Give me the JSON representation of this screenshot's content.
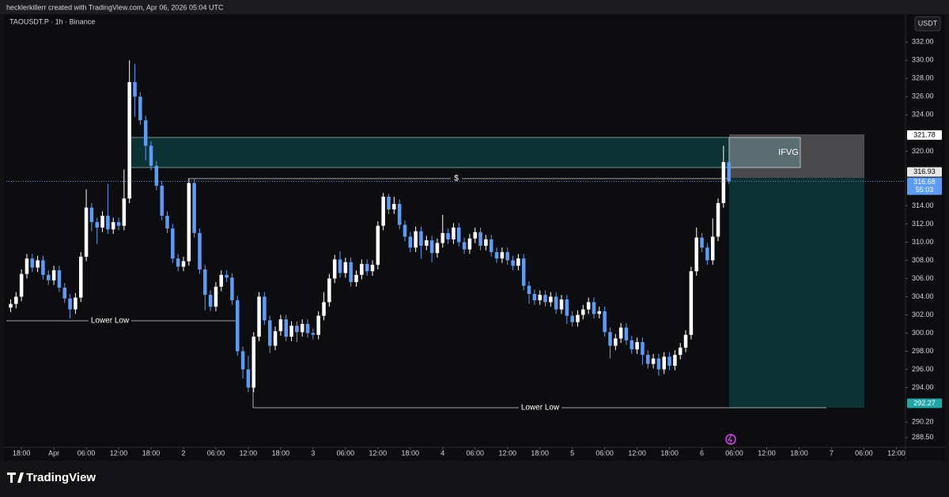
{
  "chart_data": {
    "type": "candlestick",
    "caption": "hecklerkillerr created with TradingView.com, Apr 06, 2026 05:04 UTC",
    "title": "TAOUSDT.P · 1h · Binance",
    "currency": "USDT",
    "brand": "TradingView",
    "annotations": [
      "IFVG",
      "$",
      "Lower Low",
      "Lower Low"
    ],
    "countdown": "55:03",
    "price_labels": [
      321.78,
      316.93,
      316.68,
      292.27
    ],
    "up_color": "#ffffff",
    "down_color": "#5b9cf6",
    "grid": false,
    "xlim": [
      -0.8,
      165.7
    ],
    "ylim": [
      287.44,
      335.07
    ],
    "xticks": [
      {
        "value": 2,
        "label": "18:00"
      },
      {
        "value": 8,
        "label": "Apr"
      },
      {
        "value": 14,
        "label": "06:00"
      },
      {
        "value": 20,
        "label": "12:00"
      },
      {
        "value": 26,
        "label": "18:00"
      },
      {
        "value": 32,
        "label": "2"
      },
      {
        "value": 38,
        "label": "06:00"
      },
      {
        "value": 44,
        "label": "12:00"
      },
      {
        "value": 50,
        "label": "18:00"
      },
      {
        "value": 56,
        "label": "3"
      },
      {
        "value": 62,
        "label": "06:00"
      },
      {
        "value": 68,
        "label": "12:00"
      },
      {
        "value": 74,
        "label": "18:00"
      },
      {
        "value": 80,
        "label": "4"
      },
      {
        "value": 86,
        "label": "06:00"
      },
      {
        "value": 92,
        "label": "12:00"
      },
      {
        "value": 98,
        "label": "18:00"
      },
      {
        "value": 104,
        "label": "5"
      },
      {
        "value": 110,
        "label": "06:00"
      },
      {
        "value": 116,
        "label": "12:00"
      },
      {
        "value": 122,
        "label": "18:00"
      },
      {
        "value": 128,
        "label": "6"
      },
      {
        "value": 134,
        "label": "06:00"
      },
      {
        "value": 140,
        "label": "12:00"
      },
      {
        "value": 146,
        "label": "18:00"
      },
      {
        "value": 152,
        "label": "7"
      },
      {
        "value": 158,
        "label": "06:00"
      },
      {
        "value": 164,
        "label": "12:00"
      }
    ],
    "yticks": [
      {
        "value": 332,
        "label": "332.00"
      },
      {
        "value": 330,
        "label": "330.00"
      },
      {
        "value": 328,
        "label": "328.00"
      },
      {
        "value": 326,
        "label": "326.00"
      },
      {
        "value": 324,
        "label": "324.00"
      },
      {
        "value": 320,
        "label": "320.00"
      },
      {
        "value": 314,
        "label": "314.00"
      },
      {
        "value": 312,
        "label": "312.00"
      },
      {
        "value": 310,
        "label": "310.00"
      },
      {
        "value": 308,
        "label": "308.00"
      },
      {
        "value": 306,
        "label": "306.00"
      },
      {
        "value": 304,
        "label": "304.00"
      },
      {
        "value": 302,
        "label": "302.00"
      },
      {
        "value": 300,
        "label": "300.00"
      },
      {
        "value": 298,
        "label": "298.00"
      },
      {
        "value": 296,
        "label": "296.00"
      },
      {
        "value": 294,
        "label": "294.00"
      },
      {
        "value": 290.2,
        "label": "290.20"
      },
      {
        "value": 288.5,
        "label": "288.50"
      }
    ],
    "open": [
      302.8,
      303.2,
      304.0,
      306.5,
      308.2,
      307.2,
      308.0,
      306.4,
      305.8,
      306.9,
      305.0,
      303.8,
      302.6,
      303.9,
      308.4,
      313.8,
      312.2,
      311.6,
      312.9,
      311.4,
      312.2,
      311.8,
      314.8,
      327.6,
      326.0,
      323.4,
      320.6,
      318.4,
      316.2,
      312.9,
      311.5,
      308.2,
      307.3,
      307.9,
      316.5,
      311.0,
      307.0,
      304.2,
      302.9,
      305.1,
      306.4,
      306.1,
      303.6,
      298.0,
      296.0,
      294.0,
      299.6,
      304.0,
      301.4,
      298.6,
      300.2,
      301.5,
      299.6,
      300.8,
      300.1,
      301.0,
      300.0,
      299.8,
      301.9,
      303.4,
      306.0,
      308.1,
      306.6,
      307.8,
      305.6,
      306.4,
      307.6,
      306.8,
      307.5,
      311.8,
      315.0,
      313.6,
      314.2,
      311.9,
      310.6,
      309.4,
      311.2,
      309.6,
      310.2,
      308.8,
      309.9,
      311.0,
      310.3,
      311.6,
      310.0,
      309.2,
      310.4,
      311.1,
      309.6,
      310.3,
      308.9,
      308.2,
      308.9,
      308.0,
      307.4,
      308.2,
      305.2,
      304.3,
      303.6,
      304.2,
      303.4,
      304.0,
      302.6,
      303.7,
      301.9,
      301.2,
      302.0,
      302.6,
      303.4,
      302.1,
      302.4,
      300.1,
      298.6,
      299.4,
      300.6,
      299.2,
      298.2,
      299.0,
      297.6,
      296.6,
      297.2,
      296.0,
      297.4,
      296.4,
      297.6,
      298.4,
      299.8,
      306.8,
      310.5,
      309.4,
      308.0,
      310.6,
      314.3,
      318.8
    ],
    "high": [
      303.7,
      304.5,
      307.0,
      308.7,
      308.7,
      308.5,
      308.5,
      306.9,
      307.4,
      307.4,
      305.5,
      304.3,
      304.4,
      308.9,
      315.8,
      314.3,
      312.7,
      313.4,
      316.4,
      312.7,
      312.7,
      318.0,
      330.0,
      329.6,
      326.5,
      323.9,
      321.1,
      318.9,
      316.7,
      313.4,
      312.0,
      308.7,
      308.4,
      317.0,
      317.0,
      311.5,
      307.5,
      304.7,
      305.6,
      306.9,
      306.9,
      306.6,
      304.1,
      298.5,
      297.5,
      300.1,
      304.5,
      304.5,
      301.9,
      300.7,
      302.0,
      302.0,
      301.3,
      301.3,
      301.5,
      301.5,
      300.5,
      302.4,
      304.5,
      306.5,
      308.6,
      309.0,
      308.3,
      308.3,
      306.9,
      308.1,
      308.1,
      308.0,
      312.3,
      315.4,
      315.3,
      315.0,
      314.7,
      312.4,
      311.1,
      311.7,
      311.7,
      310.7,
      310.7,
      310.4,
      313.0,
      311.5,
      312.1,
      312.1,
      310.5,
      310.9,
      311.6,
      311.6,
      310.8,
      310.8,
      309.4,
      309.4,
      309.4,
      308.5,
      308.7,
      308.7,
      305.7,
      304.8,
      304.7,
      304.7,
      304.5,
      304.5,
      304.2,
      304.2,
      302.4,
      302.5,
      303.1,
      303.9,
      303.9,
      302.9,
      302.9,
      300.6,
      299.9,
      301.1,
      301.1,
      299.7,
      299.5,
      299.5,
      298.1,
      297.7,
      297.7,
      297.9,
      297.9,
      298.1,
      298.9,
      300.3,
      307.3,
      311.6,
      311.0,
      309.9,
      312.6,
      314.8,
      320.6,
      319.2
    ],
    "low": [
      302.3,
      302.7,
      303.5,
      306.0,
      306.7,
      306.7,
      305.9,
      305.3,
      305.3,
      304.5,
      303.3,
      301.6,
      302.1,
      303.4,
      307.9,
      311.2,
      309.8,
      311.1,
      310.9,
      310.9,
      311.3,
      311.3,
      314.3,
      323.8,
      322.9,
      319.0,
      317.9,
      315.7,
      312.4,
      311.0,
      307.7,
      306.8,
      306.8,
      307.4,
      310.5,
      306.5,
      302.5,
      302.4,
      302.4,
      304.6,
      305.6,
      303.1,
      297.5,
      295.0,
      293.5,
      293.5,
      299.1,
      300.9,
      297.8,
      298.1,
      299.7,
      299.1,
      299.1,
      299.0,
      299.6,
      299.5,
      299.3,
      299.3,
      301.4,
      302.9,
      305.5,
      306.1,
      306.1,
      305.1,
      305.1,
      305.9,
      306.3,
      306.3,
      307.0,
      311.3,
      313.1,
      313.1,
      311.4,
      310.1,
      308.9,
      308.9,
      308.2,
      309.1,
      307.8,
      308.3,
      309.4,
      309.8,
      309.8,
      309.5,
      308.7,
      308.7,
      309.9,
      309.1,
      309.1,
      308.4,
      307.7,
      307.7,
      307.5,
      306.9,
      306.9,
      304.7,
      303.2,
      303.1,
      303.1,
      302.9,
      302.9,
      302.1,
      302.1,
      301.0,
      300.7,
      300.7,
      301.5,
      302.1,
      301.6,
      301.6,
      299.6,
      297.2,
      298.1,
      298.9,
      298.7,
      297.7,
      297.7,
      296.5,
      296.1,
      296.1,
      295.3,
      295.5,
      295.9,
      295.9,
      297.1,
      297.9,
      299.3,
      306.3,
      308.9,
      307.5,
      307.5,
      310.1,
      313.8,
      316.4
    ],
    "close": [
      303.2,
      304.0,
      306.5,
      308.2,
      307.2,
      308.0,
      306.4,
      305.8,
      306.9,
      305.0,
      303.8,
      302.6,
      303.9,
      308.4,
      313.8,
      312.2,
      311.6,
      312.9,
      311.4,
      312.2,
      311.8,
      314.8,
      327.6,
      326.0,
      323.4,
      320.6,
      318.4,
      316.2,
      312.9,
      311.5,
      308.2,
      307.3,
      307.9,
      316.5,
      311.0,
      307.0,
      304.2,
      302.9,
      305.1,
      306.4,
      306.1,
      303.6,
      298.0,
      296.0,
      294.0,
      299.6,
      304.0,
      301.4,
      298.6,
      300.2,
      301.5,
      299.6,
      300.8,
      300.1,
      301.0,
      300.0,
      299.8,
      301.9,
      303.4,
      306.0,
      308.1,
      306.6,
      307.8,
      305.6,
      306.4,
      307.6,
      306.8,
      307.5,
      311.8,
      315.0,
      313.6,
      314.2,
      311.9,
      310.6,
      309.4,
      311.2,
      309.6,
      310.2,
      308.8,
      309.9,
      311.0,
      310.3,
      311.6,
      310.0,
      309.2,
      310.4,
      311.1,
      309.6,
      310.3,
      308.9,
      308.2,
      308.9,
      308.0,
      307.4,
      308.2,
      305.2,
      304.3,
      303.6,
      304.2,
      303.4,
      304.0,
      302.6,
      303.7,
      301.9,
      301.2,
      302.0,
      302.6,
      303.4,
      302.1,
      302.4,
      300.1,
      298.6,
      299.4,
      300.6,
      299.2,
      298.2,
      299.0,
      297.6,
      296.6,
      297.2,
      296.0,
      297.4,
      296.4,
      297.6,
      298.4,
      299.8,
      306.8,
      310.5,
      309.4,
      308.0,
      310.6,
      314.3,
      318.8,
      316.68
    ]
  }
}
